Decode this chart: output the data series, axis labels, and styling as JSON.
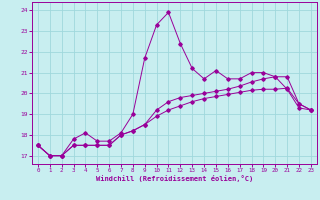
{
  "xlabel": "Windchill (Refroidissement éolien,°C)",
  "bg_color": "#c8eef0",
  "line_color": "#990099",
  "grid_color": "#a0d8dc",
  "xlim": [
    -0.5,
    23.5
  ],
  "ylim": [
    16.6,
    24.4
  ],
  "yticks": [
    17,
    18,
    19,
    20,
    21,
    22,
    23,
    24
  ],
  "xticks": [
    0,
    1,
    2,
    3,
    4,
    5,
    6,
    7,
    8,
    9,
    10,
    11,
    12,
    13,
    14,
    15,
    16,
    17,
    18,
    19,
    20,
    21,
    22,
    23
  ],
  "series1_x": [
    0,
    1,
    2,
    3,
    4,
    5,
    6,
    7,
    8,
    9,
    10,
    11,
    12,
    13,
    14,
    15,
    16,
    17,
    18,
    19,
    20,
    21,
    22,
    23
  ],
  "series1_y": [
    17.5,
    17.0,
    17.0,
    17.8,
    18.1,
    17.7,
    17.7,
    18.1,
    19.0,
    21.7,
    23.3,
    23.9,
    22.4,
    21.2,
    20.7,
    21.1,
    20.7,
    20.7,
    21.0,
    21.0,
    20.8,
    20.2,
    19.3,
    19.2
  ],
  "series2_x": [
    0,
    1,
    2,
    3,
    4,
    5,
    6,
    7,
    8,
    9,
    10,
    11,
    12,
    13,
    14,
    15,
    16,
    17,
    18,
    19,
    20,
    21,
    22,
    23
  ],
  "series2_y": [
    17.5,
    17.0,
    17.0,
    17.5,
    17.5,
    17.5,
    17.5,
    18.0,
    18.2,
    18.5,
    18.9,
    19.2,
    19.4,
    19.6,
    19.75,
    19.85,
    19.95,
    20.05,
    20.15,
    20.2,
    20.2,
    20.25,
    19.5,
    19.2
  ],
  "series3_x": [
    0,
    1,
    2,
    3,
    4,
    5,
    6,
    7,
    8,
    9,
    10,
    11,
    12,
    13,
    14,
    15,
    16,
    17,
    18,
    19,
    20,
    21,
    22,
    23
  ],
  "series3_y": [
    17.5,
    17.0,
    17.0,
    17.5,
    17.5,
    17.5,
    17.5,
    18.0,
    18.2,
    18.5,
    19.2,
    19.6,
    19.8,
    19.9,
    20.0,
    20.1,
    20.2,
    20.35,
    20.55,
    20.7,
    20.8,
    20.8,
    19.5,
    19.2
  ]
}
